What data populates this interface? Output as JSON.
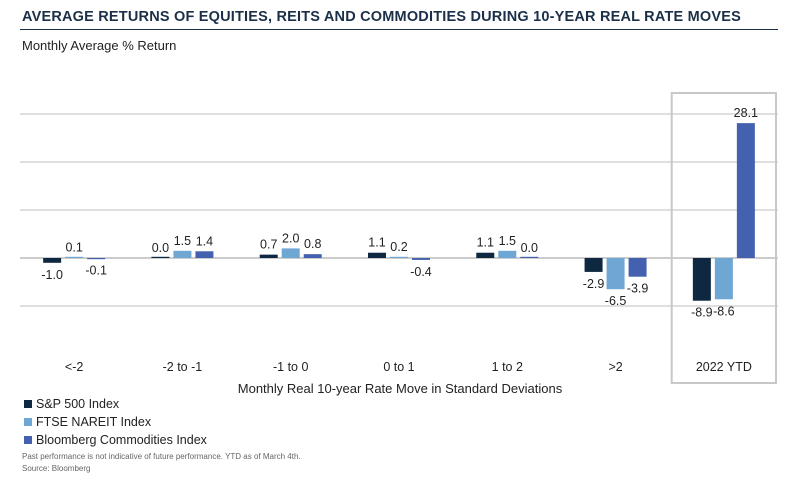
{
  "title": "AVERAGE RETURNS OF EQUITIES, REITS AND COMMODITIES DURING 10-YEAR REAL RATE MOVES",
  "footnote": "Past performance is not indicative of future performance. YTD as of March 4th.",
  "source": "Source: Bloomberg",
  "colors": {
    "sp500": "#0e2841",
    "reit": "#6ea6d4",
    "commodities": "#4461b0",
    "grid": "#bfbfbf",
    "highlight_box": "#c8c8c8"
  },
  "chart_data": {
    "type": "bar",
    "ylabel": "Monthly Average % Return",
    "xlabel": "Monthly Real 10-year Rate Move in Standard Deviations",
    "categories": [
      "<-2",
      "-2 to -1",
      "-1 to 0",
      "0 to 1",
      "1 to 2",
      ">2",
      "2022 YTD"
    ],
    "ylim": [
      -10,
      30
    ],
    "grid": true,
    "legend_position": "bottom-left",
    "highlighted_category": "2022 YTD",
    "series": [
      {
        "name": "S&P 500 Index",
        "color": "#0e2841",
        "values": [
          -1.0,
          0.0,
          0.7,
          1.1,
          1.1,
          -2.9,
          -8.9
        ],
        "labels": [
          "-1.0",
          "0.0",
          "0.7",
          "1.1",
          "1.1",
          "-2.9",
          "-8.9"
        ]
      },
      {
        "name": "FTSE NAREIT Index",
        "color": "#6ea6d4",
        "values": [
          0.1,
          1.5,
          2.0,
          0.2,
          1.5,
          -6.5,
          -8.6
        ],
        "labels": [
          "0.1",
          "1.5",
          "2.0",
          "0.2",
          "1.5",
          "-6.5",
          "-8.6"
        ]
      },
      {
        "name": "Bloomberg Commodities Index",
        "color": "#4461b0",
        "values": [
          -0.1,
          1.4,
          0.8,
          -0.4,
          0.0,
          -3.9,
          28.1
        ],
        "labels": [
          "-0.1",
          "1.4",
          "0.8",
          "-0.4",
          "0.0",
          "-3.9",
          "28.1"
        ]
      }
    ]
  }
}
